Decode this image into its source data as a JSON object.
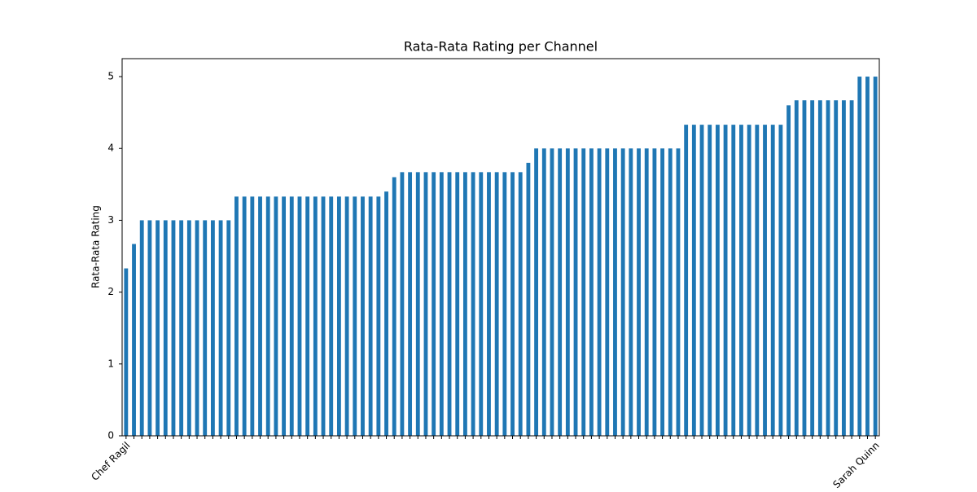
{
  "chart_data": {
    "type": "bar",
    "title": "Rata-Rata Rating per Channel",
    "ylabel": "Rata-Rata Rating",
    "categories": [
      "Chef Ragil",
      null,
      null,
      null,
      null,
      null,
      null,
      null,
      null,
      null,
      null,
      null,
      null,
      null,
      null,
      null,
      null,
      null,
      null,
      null,
      null,
      null,
      null,
      null,
      null,
      null,
      null,
      null,
      null,
      null,
      null,
      null,
      null,
      null,
      null,
      null,
      null,
      null,
      null,
      null,
      null,
      null,
      null,
      null,
      null,
      null,
      null,
      null,
      null,
      null,
      null,
      null,
      null,
      null,
      null,
      null,
      null,
      null,
      null,
      null,
      null,
      null,
      null,
      null,
      null,
      null,
      null,
      null,
      null,
      null,
      null,
      null,
      null,
      null,
      null,
      null,
      null,
      null,
      null,
      null,
      null,
      null,
      null,
      null,
      null,
      null,
      null,
      null,
      null,
      null,
      null,
      null,
      null,
      null,
      null,
      "Sarah Quinn"
    ],
    "values": [
      2.33,
      2.67,
      3,
      3,
      3,
      3,
      3,
      3,
      3,
      3,
      3,
      3,
      3,
      3,
      3.33,
      3.33,
      3.33,
      3.33,
      3.33,
      3.33,
      3.33,
      3.33,
      3.33,
      3.33,
      3.33,
      3.33,
      3.33,
      3.33,
      3.33,
      3.33,
      3.33,
      3.33,
      3.33,
      3.4,
      3.6,
      3.67,
      3.67,
      3.67,
      3.67,
      3.67,
      3.67,
      3.67,
      3.67,
      3.67,
      3.67,
      3.67,
      3.67,
      3.67,
      3.67,
      3.67,
      3.67,
      3.8,
      4,
      4,
      4,
      4,
      4,
      4,
      4,
      4,
      4,
      4,
      4,
      4,
      4,
      4,
      4,
      4,
      4,
      4,
      4,
      4.33,
      4.33,
      4.33,
      4.33,
      4.33,
      4.33,
      4.33,
      4.33,
      4.33,
      4.33,
      4.33,
      4.33,
      4.33,
      4.6,
      4.67,
      4.67,
      4.67,
      4.67,
      4.67,
      4.67,
      4.67,
      4.67,
      5,
      5,
      5
    ],
    "color": "#1f77b4",
    "ylim": [
      0,
      5.25
    ],
    "yticks": [
      0,
      1,
      2,
      3,
      4,
      5
    ],
    "grid": false
  }
}
